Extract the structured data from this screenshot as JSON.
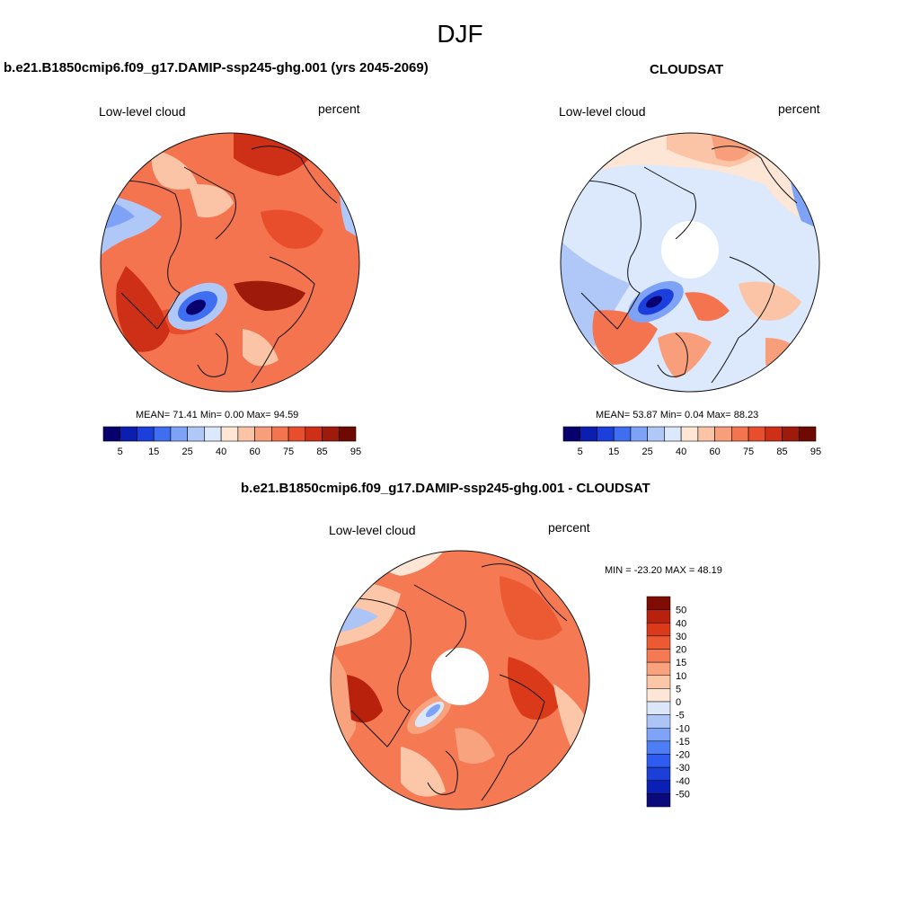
{
  "figure": {
    "title": "DJF"
  },
  "panels": [
    {
      "title": "b.e21.B1850cmip6.f09_g17.DAMIP-ssp245-ghg.001 (yrs 2045-2069)",
      "left_label": "Low-level cloud",
      "right_label": "percent",
      "stats": "MEAN=  71.41  Min=    0.00  Max=  94.59"
    },
    {
      "title": "CLOUDSAT",
      "left_label": "Low-level cloud",
      "right_label": "percent",
      "stats": "MEAN=  53.87  Min=    0.04  Max=  88.23"
    },
    {
      "title": "b.e21.B1850cmip6.f09_g17.DAMIP-ssp245-ghg.001 - CLOUDSAT",
      "left_label": "Low-level cloud",
      "right_label": "percent",
      "stats": "MIN = -23.20 MAX =  48.19"
    }
  ],
  "colorbar_abs": {
    "colors": [
      "#08006e",
      "#0a1fb0",
      "#1a3fdc",
      "#3f6ff0",
      "#7ea2f5",
      "#b0c8f8",
      "#dce8fb",
      "#fde6d6",
      "#fcc4a6",
      "#f99e7a",
      "#f47450",
      "#e84d2c",
      "#cd2f17",
      "#9e1a0a",
      "#6e0a02"
    ],
    "tick_labels": [
      "5",
      "15",
      "25",
      "40",
      "60",
      "75",
      "85",
      "95"
    ]
  },
  "colorbar_diff": {
    "colors": [
      "#0a0a7a",
      "#0a20b4",
      "#1c3fd8",
      "#2e5cf0",
      "#4e7ef6",
      "#7fa3f6",
      "#acc4f6",
      "#dbe6f8",
      "#fde6d6",
      "#fcc6a8",
      "#f9a27e",
      "#f57a54",
      "#ec5a34",
      "#db3a1a",
      "#b8220c",
      "#7e0c02"
    ],
    "tick_labels": [
      "50",
      "40",
      "30",
      "20",
      "15",
      "10",
      "5",
      "0",
      "-5",
      "-10",
      "-15",
      "-20",
      "-30",
      "-40",
      "-50"
    ]
  }
}
